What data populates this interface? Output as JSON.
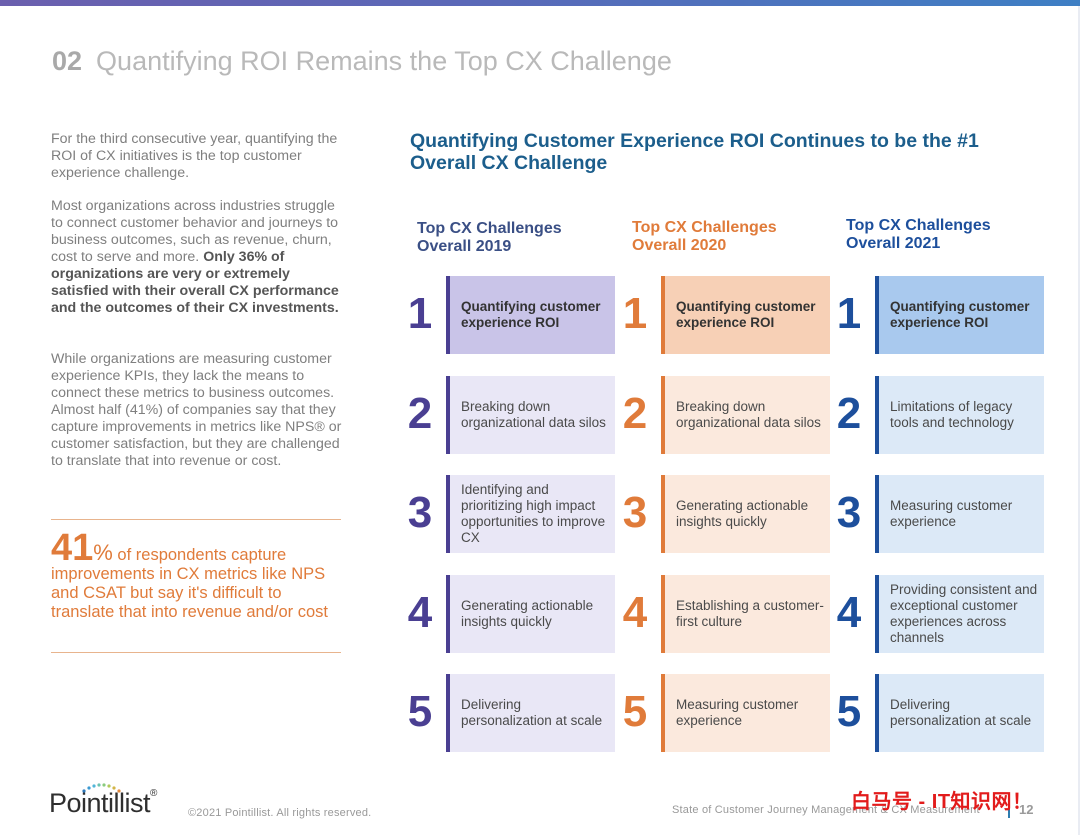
{
  "header": {
    "number": "02",
    "title": "Quantifying ROI Remains the Top CX Challenge"
  },
  "intro": {
    "p1": "For the third consecutive year, quantifying the ROI of CX initiatives is the top customer experience challenge.",
    "p2_lead": "Most organizations across industries struggle to connect customer behavior and journeys to business outcomes, such as revenue, churn, cost to serve and more.",
    "p2_bold": "Only 36% of organizations are very or extremely satisfied with their overall CX performance and the outcomes of their CX investments.",
    "p3": "While organizations are measuring customer experience KPIs, they lack the means to connect these metrics to business outcomes. Almost half (41%) of companies say that they capture improvements in metrics like NPS® or customer satisfaction, but they are challenged to translate that into revenue or cost."
  },
  "callout": {
    "big_number": "41",
    "percent": "%",
    "text": " of respondents capture improvements in CX metrics like NPS and CSAT but say it's difficult to translate that into revenue and/or cost"
  },
  "figure": {
    "headline": "Quantifying Customer Experience ROI Continues to be the #1 Overall CX Challenge",
    "columns": [
      {
        "heading_line1": "Top CX Challenges",
        "heading_line2": "Overall 2019",
        "accent": "#4a3f92",
        "heading_color": "#3a4f85",
        "top_fill": "#c9c4e8",
        "fill": "#e9e7f6",
        "items": [
          {
            "rank": "1",
            "text": "Quantifying customer experience ROI"
          },
          {
            "rank": "2",
            "text": "Breaking down organizational data silos"
          },
          {
            "rank": "3",
            "text": "Identifying and prioritizing high impact opportunities to improve CX"
          },
          {
            "rank": "4",
            "text": "Generating actionable insights quickly"
          },
          {
            "rank": "5",
            "text": "Delivering personalization at scale"
          }
        ]
      },
      {
        "heading_line1": "Top CX Challenges",
        "heading_line2": "Overall 2020",
        "accent": "#e07b3a",
        "heading_color": "#e07b3a",
        "top_fill": "#f7d0b6",
        "fill": "#fbe9dd",
        "items": [
          {
            "rank": "1",
            "text": "Quantifying customer experience ROI"
          },
          {
            "rank": "2",
            "text": "Breaking down organizational data silos"
          },
          {
            "rank": "3",
            "text": "Generating actionable insights quickly"
          },
          {
            "rank": "4",
            "text": "Establishing a customer-first culture"
          },
          {
            "rank": "5",
            "text": "Measuring customer experience"
          }
        ]
      },
      {
        "heading_line1": "Top CX Challenges",
        "heading_line2": "Overall 2021",
        "accent": "#1d4f9c",
        "heading_color": "#1d4f9c",
        "top_fill": "#a9c9ee",
        "fill": "#dce9f7",
        "items": [
          {
            "rank": "1",
            "text": "Quantifying customer experience ROI"
          },
          {
            "rank": "2",
            "text": "Limitations of legacy tools and technology"
          },
          {
            "rank": "3",
            "text": "Measuring customer experience"
          },
          {
            "rank": "4",
            "text": "Providing consistent and exceptional customer experiences across channels"
          },
          {
            "rank": "5",
            "text": "Delivering personalization at scale"
          }
        ]
      }
    ]
  },
  "footer": {
    "logo": "Pointillist",
    "logo_mark": "®",
    "copyright": "©2021 Pointillist. All rights reserved.",
    "report": "State of Customer Journey Management & CX Measurement",
    "page": "12",
    "watermark": "白马号 - IT知识网！"
  }
}
